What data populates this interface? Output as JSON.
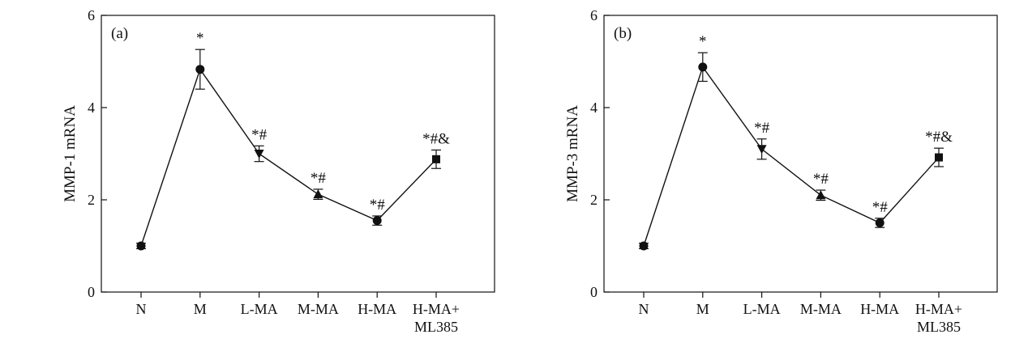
{
  "chart_data": [
    {
      "type": "line",
      "panel_label": "(a)",
      "ylabel": "MMP-1 mRNA",
      "xlabel": "",
      "ylim": [
        0,
        6
      ],
      "yticks": [
        0,
        2,
        4,
        6
      ],
      "categories": [
        "N",
        "M",
        "L-MA",
        "M-MA",
        "H-MA",
        "H-MA+ ML385"
      ],
      "values": [
        1.0,
        4.83,
        3.0,
        2.12,
        1.55,
        2.88
      ],
      "errors": [
        0.06,
        0.43,
        0.17,
        0.11,
        0.1,
        0.2
      ],
      "markers": [
        "circle",
        "circle",
        "triangle-down",
        "triangle-up",
        "circle",
        "square"
      ],
      "annotations": [
        "",
        "*",
        "*#",
        "*#",
        "*#",
        "*#&"
      ],
      "grid": false,
      "legend": "none"
    },
    {
      "type": "line",
      "panel_label": "(b)",
      "ylabel": "MMP-3 mRNA",
      "xlabel": "",
      "ylim": [
        0,
        6
      ],
      "yticks": [
        0,
        2,
        4,
        6
      ],
      "categories": [
        "N",
        "M",
        "L-MA",
        "M-MA",
        "H-MA",
        "H-MA+ ML385"
      ],
      "values": [
        1.0,
        4.88,
        3.1,
        2.1,
        1.5,
        2.92
      ],
      "errors": [
        0.06,
        0.31,
        0.22,
        0.11,
        0.1,
        0.2
      ],
      "markers": [
        "circle",
        "circle",
        "triangle-down",
        "triangle-up",
        "circle",
        "square"
      ],
      "annotations": [
        "",
        "*",
        "*#",
        "*#",
        "*#",
        "*#&"
      ],
      "grid": false,
      "legend": "none"
    }
  ]
}
